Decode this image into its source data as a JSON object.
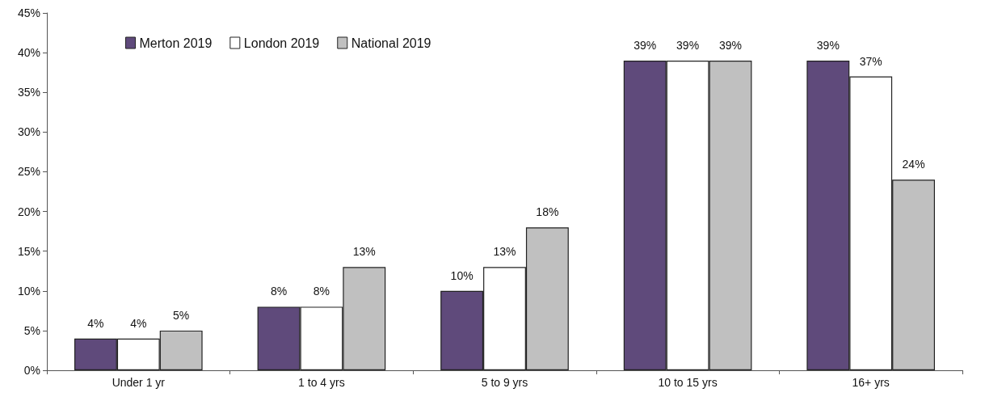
{
  "chart_data": {
    "type": "bar",
    "categories": [
      "Under 1 yr",
      "1 to 4 yrs",
      "5 to 9 yrs",
      "10 to 15 yrs",
      "16+ yrs"
    ],
    "series": [
      {
        "name": "Merton 2019",
        "color": "#5f4a7b",
        "values": [
          4,
          8,
          10,
          39,
          39
        ],
        "value_labels": [
          "4%",
          "8%",
          "10%",
          "39%",
          "39%"
        ]
      },
      {
        "name": "London 2019",
        "color": "#ffffff",
        "values": [
          4,
          8,
          13,
          39,
          37
        ],
        "value_labels": [
          "4%",
          "8%",
          "13%",
          "39%",
          "37%"
        ]
      },
      {
        "name": "National 2019",
        "color": "#c0c0c0",
        "values": [
          5,
          13,
          18,
          39,
          24
        ],
        "value_labels": [
          "5%",
          "13%",
          "18%",
          "39%",
          "24%"
        ]
      }
    ],
    "ylim": [
      0,
      45
    ],
    "yticks": [
      {
        "value": 0,
        "label": "0%"
      },
      {
        "value": 5,
        "label": "5%"
      },
      {
        "value": 10,
        "label": "10%"
      },
      {
        "value": 15,
        "label": "15%"
      },
      {
        "value": 20,
        "label": "20%"
      },
      {
        "value": 25,
        "label": "25%"
      },
      {
        "value": 30,
        "label": "30%"
      },
      {
        "value": 35,
        "label": "35%"
      },
      {
        "value": 40,
        "label": "40%"
      },
      {
        "value": 45,
        "label": "45%"
      }
    ],
    "grid": false,
    "legend": "top left"
  }
}
